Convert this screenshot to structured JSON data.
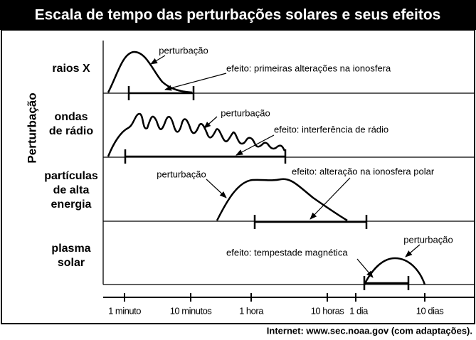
{
  "title": "Escala de tempo das perturbações solares e seus efeitos",
  "axis_title": "Perturbação",
  "rows": [
    {
      "label": [
        "raios X"
      ],
      "disturbance": "perturbação",
      "effect": "efeito: primeiras alterações na ionosfera"
    },
    {
      "label": [
        "ondas",
        "de rádio"
      ],
      "disturbance": "perturbação",
      "effect": "efeito: interferência de rádio"
    },
    {
      "label": [
        "partículas",
        "de alta",
        "energia"
      ],
      "disturbance": "perturbação",
      "effect": "efeito: alteração na ionosfera polar"
    },
    {
      "label": [
        "plasma",
        "solar"
      ],
      "disturbance": "perturbação",
      "effect": "efeito: tempestade magnética"
    }
  ],
  "time_axis": [
    "1 minuto",
    "10 minutos",
    "1 hora",
    "10 horas",
    "1 dia",
    "10 dias"
  ],
  "source": "Internet: www.sec.noaa.gov (com adaptações)."
}
